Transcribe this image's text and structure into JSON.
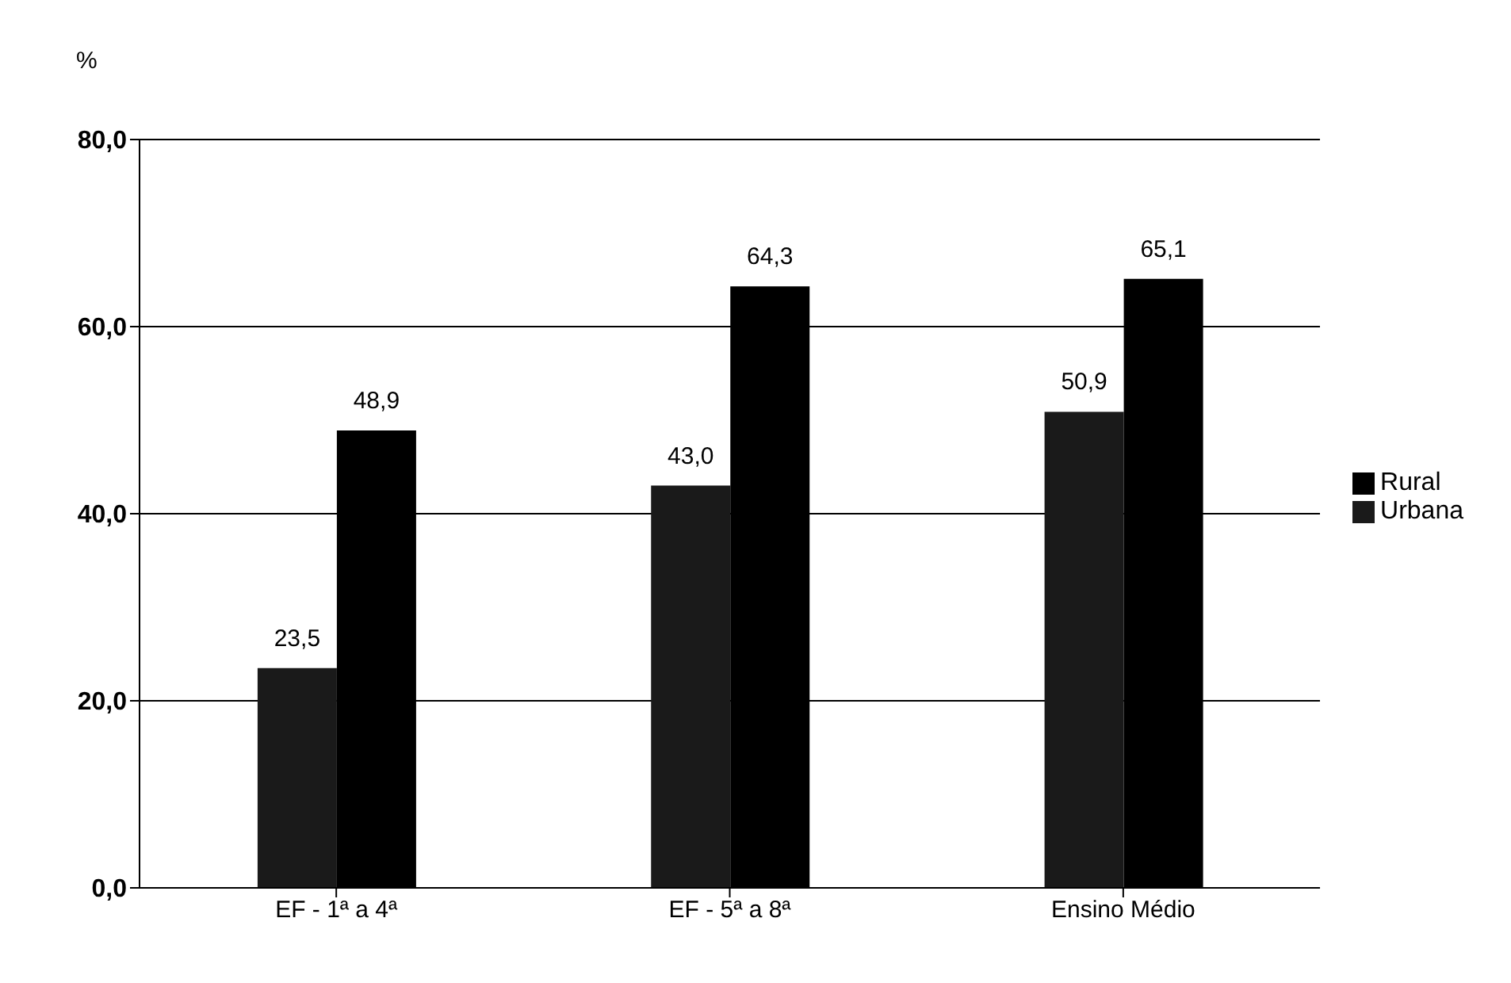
{
  "chart_data": {
    "type": "bar",
    "ylabel": "%",
    "categories": [
      "EF - 1ª a 4ª",
      "EF - 5ª a 8ª",
      "Ensino Médio"
    ],
    "series": [
      {
        "name": "Urbana",
        "color": "#1a1a1a",
        "values": [
          23.5,
          43.0,
          50.9
        ],
        "value_labels": [
          "23,5",
          "43,0",
          "50,9"
        ]
      },
      {
        "name": "Rural",
        "color": "#000000",
        "values": [
          48.9,
          64.3,
          65.1
        ],
        "value_labels": [
          "48,9",
          "64,3",
          "65,1"
        ]
      }
    ],
    "ylim": [
      0,
      80
    ],
    "yticks": [
      {
        "value": 0,
        "label": "0,0"
      },
      {
        "value": 20,
        "label": "20,0"
      },
      {
        "value": 40,
        "label": "40,0"
      },
      {
        "value": 60,
        "label": "60,0"
      },
      {
        "value": 80,
        "label": "80,0"
      }
    ],
    "grid": "y",
    "legend": "right"
  }
}
